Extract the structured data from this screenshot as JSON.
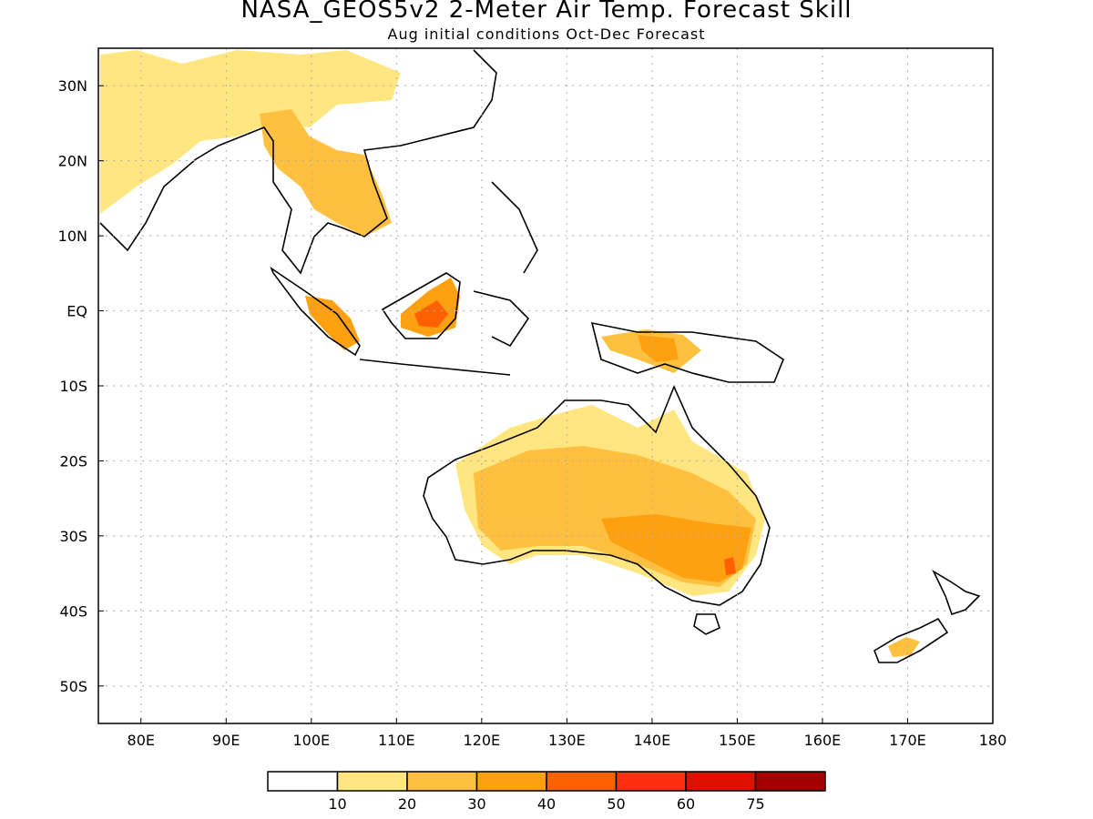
{
  "title": "NASA_GEOS5v2 2-Meter Air Temp. Forecast Skill",
  "subtitle": "Aug initial conditions  Oct-Dec Forecast",
  "map": {
    "lon_range": [
      75,
      180
    ],
    "lat_range": [
      -55,
      35
    ],
    "grid": true,
    "lon_ticks": [
      "80E",
      "90E",
      "100E",
      "110E",
      "120E",
      "130E",
      "140E",
      "150E",
      "160E",
      "170E",
      "180"
    ],
    "lat_ticks": [
      "30N",
      "20N",
      "10N",
      "EQ",
      "10S",
      "20S",
      "30S",
      "40S",
      "50S"
    ]
  },
  "legend": {
    "colors": [
      "#ffffff",
      "#ffe680",
      "#ffc040",
      "#ffa010",
      "#ff6000",
      "#ff3010",
      "#e01000",
      "#a00000"
    ],
    "labels": [
      "10",
      "20",
      "30",
      "40",
      "50",
      "60",
      "75"
    ]
  },
  "regions": [
    {
      "name": "Indochina / S China",
      "level": 2
    },
    {
      "name": "Borneo",
      "level": 4
    },
    {
      "name": "Sumatra",
      "level": 3
    },
    {
      "name": "New Guinea",
      "level": 3
    },
    {
      "name": "Australia interior",
      "level": 2
    },
    {
      "name": "SE Australia",
      "level": 4
    },
    {
      "name": "New Zealand",
      "level": 2
    }
  ]
}
